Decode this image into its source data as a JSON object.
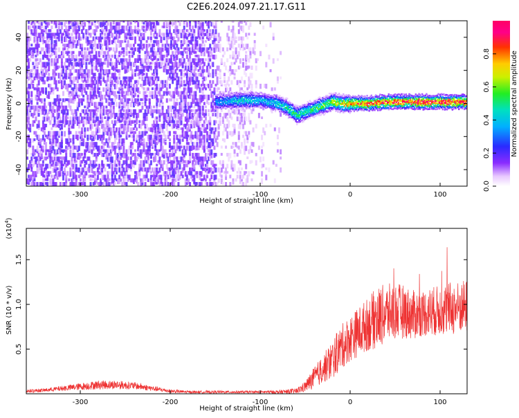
{
  "figure_title": "C2E6.2024.097.21.17.G11",
  "chart_data": [
    {
      "type": "heatmap",
      "title": "C2E6.2024.097.21.17.G11",
      "xlabel": "Height of straight line (km)",
      "ylabel": "Frequency (Hz)",
      "xlim": [
        -360,
        130
      ],
      "ylim": [
        -50,
        50
      ],
      "x_ticks": [
        -300,
        -200,
        -100,
        0,
        100
      ],
      "y_ticks": [
        -40,
        -20,
        0,
        20,
        40
      ],
      "colorbar": {
        "label": "Normalized spectral amplitude",
        "range": [
          0,
          1
        ],
        "ticks": [
          0.0,
          0.2,
          0.4,
          0.6,
          0.8
        ]
      },
      "signal_track": {
        "description": "dominant frequency vs height",
        "x": [
          -150,
          -120,
          -100,
          -80,
          -70,
          -60,
          -50,
          -40,
          -30,
          -20,
          -10,
          0,
          20,
          40,
          60,
          80,
          100,
          130
        ],
        "frequency": [
          1,
          2,
          2,
          0,
          -3,
          -7,
          -5,
          -3,
          -1,
          1,
          0,
          0,
          0,
          1,
          1,
          1,
          1,
          1
        ],
        "peak_amplitude": [
          0.35,
          0.45,
          0.4,
          0.45,
          0.5,
          0.55,
          0.5,
          0.55,
          0.6,
          0.65,
          0.7,
          0.8,
          0.85,
          0.9,
          0.9,
          0.95,
          0.95,
          0.95
        ]
      }
    },
    {
      "type": "line",
      "xlabel": "Height of straight line (km)",
      "ylabel": "SNR (10 * v/v)",
      "scale_label": "(x10",
      "scale_exponent": "4",
      "scale_suffix": ")",
      "xlim": [
        -360,
        130
      ],
      "ylim": [
        0,
        1.85
      ],
      "x_ticks": [
        -300,
        -200,
        -100,
        0,
        100
      ],
      "y_ticks": [
        0.5,
        1.0,
        1.5
      ],
      "y_tick_labels": [
        "0.5",
        "1.0",
        "1.5"
      ],
      "color": "#ee3333",
      "series": [
        {
          "name": "SNR",
          "x": [
            -360,
            -340,
            -320,
            -300,
            -280,
            -260,
            -240,
            -220,
            -200,
            -180,
            -160,
            -140,
            -120,
            -100,
            -80,
            -60,
            -50,
            -40,
            -30,
            -20,
            -10,
            0,
            10,
            20,
            30,
            40,
            50,
            60,
            70,
            80,
            90,
            100,
            110,
            120,
            130
          ],
          "mean": [
            0.03,
            0.04,
            0.06,
            0.08,
            0.1,
            0.1,
            0.09,
            0.06,
            0.03,
            0.02,
            0.02,
            0.02,
            0.02,
            0.02,
            0.02,
            0.03,
            0.08,
            0.18,
            0.28,
            0.38,
            0.52,
            0.62,
            0.7,
            0.78,
            0.85,
            0.9,
            0.92,
            0.92,
            0.88,
            0.9,
            0.92,
            0.93,
            0.95,
            0.96,
            0.98
          ],
          "spread": [
            0.02,
            0.02,
            0.03,
            0.04,
            0.05,
            0.05,
            0.04,
            0.03,
            0.02,
            0.015,
            0.015,
            0.015,
            0.015,
            0.015,
            0.02,
            0.03,
            0.06,
            0.12,
            0.16,
            0.22,
            0.25,
            0.26,
            0.28,
            0.3,
            0.35,
            0.33,
            0.32,
            0.3,
            0.28,
            0.26,
            0.28,
            0.28,
            0.3,
            0.3,
            0.3
          ]
        }
      ]
    }
  ]
}
